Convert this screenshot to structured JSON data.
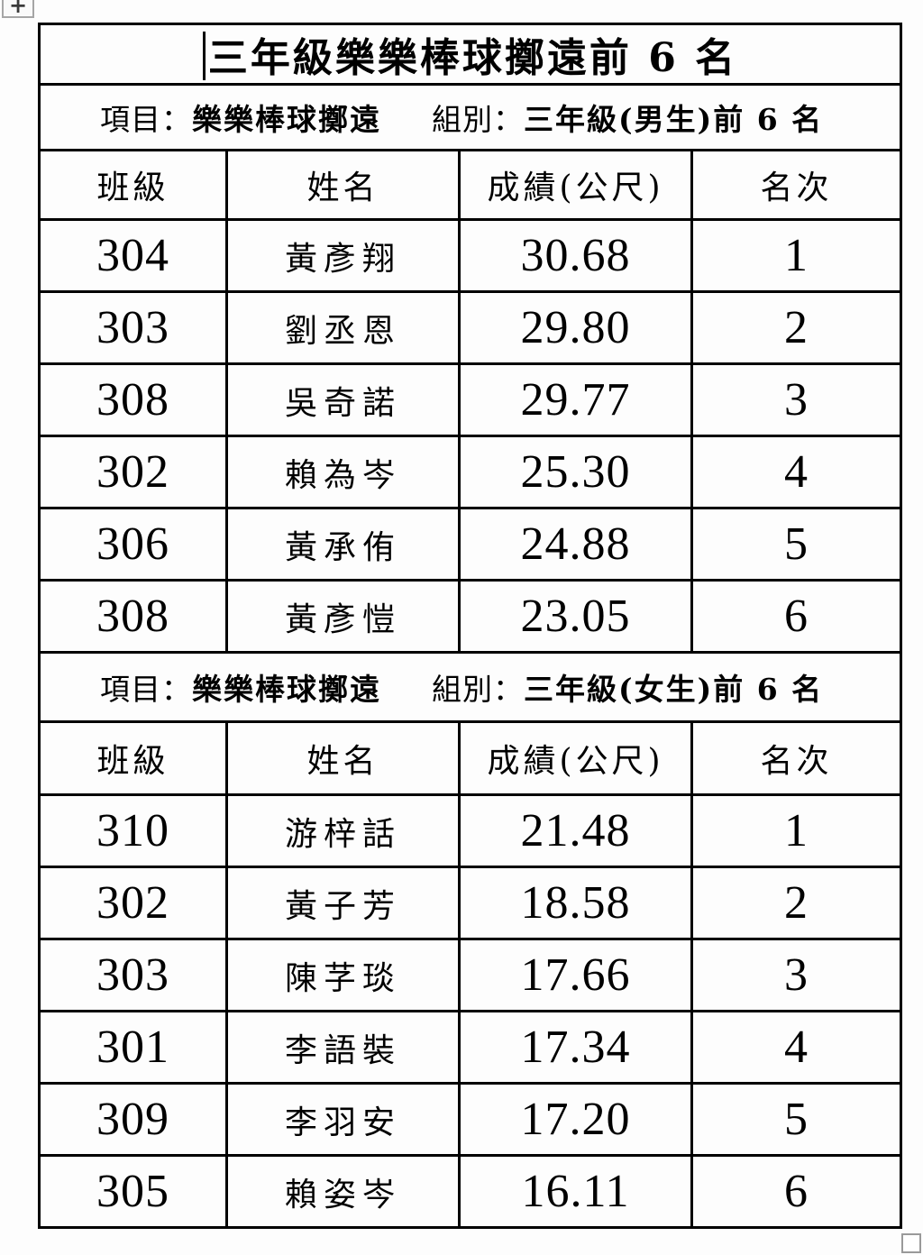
{
  "document": {
    "title": "三年級樂樂棒球擲遠前 6 名"
  },
  "icons": {
    "table_move_handle": "+",
    "table_resize_handle": "square-outline"
  },
  "columns": {
    "class": "班級",
    "name": "姓名",
    "score": "成績(公尺)",
    "rank": "名次"
  },
  "sections": [
    {
      "subtitle": {
        "item_label": "項目：",
        "item_value": "樂樂棒球擲遠",
        "group_label": "組別：",
        "group_value": "三年級(男生)前 6 名"
      },
      "rows": [
        {
          "class": "304",
          "name": "黃彥翔",
          "score": "30.68",
          "rank": "1"
        },
        {
          "class": "303",
          "name": "劉丞恩",
          "score": "29.80",
          "rank": "2"
        },
        {
          "class": "308",
          "name": "吳奇諾",
          "score": "29.77",
          "rank": "3"
        },
        {
          "class": "302",
          "name": "賴為岑",
          "score": "25.30",
          "rank": "4"
        },
        {
          "class": "306",
          "name": "黃承侑",
          "score": "24.88",
          "rank": "5"
        },
        {
          "class": "308",
          "name": "黃彥愷",
          "score": "23.05",
          "rank": "6"
        }
      ]
    },
    {
      "subtitle": {
        "item_label": "項目：",
        "item_value": "樂樂棒球擲遠",
        "group_label": "組別：",
        "group_value": "三年級(女生)前 6 名"
      },
      "rows": [
        {
          "class": "310",
          "name": "游梓話",
          "score": "21.48",
          "rank": "1"
        },
        {
          "class": "302",
          "name": "黃子芳",
          "score": "18.58",
          "rank": "2"
        },
        {
          "class": "303",
          "name": "陳芓琰",
          "score": "17.66",
          "rank": "3"
        },
        {
          "class": "301",
          "name": "李語裝",
          "score": "17.34",
          "rank": "4"
        },
        {
          "class": "309",
          "name": "李羽安",
          "score": "17.20",
          "rank": "5"
        },
        {
          "class": "305",
          "name": "賴姿岑",
          "score": "16.11",
          "rank": "6"
        }
      ]
    }
  ]
}
